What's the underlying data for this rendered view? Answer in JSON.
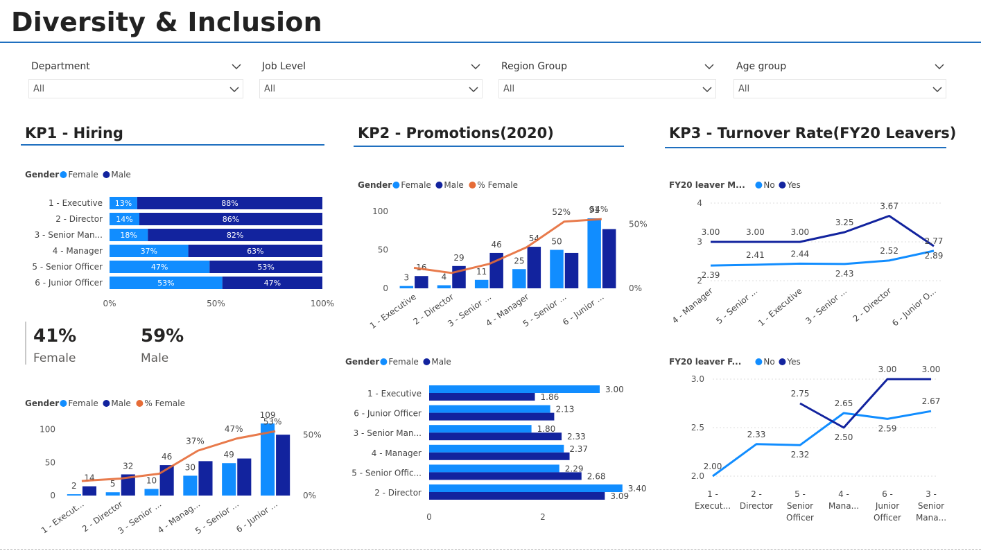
{
  "page": {
    "title": "Diversity & Inclusion"
  },
  "filters": [
    {
      "label": "Department",
      "value": "All"
    },
    {
      "label": "Job Level",
      "value": "All"
    },
    {
      "label": "Region Group",
      "value": "All"
    },
    {
      "label": "Age group",
      "value": "All"
    }
  ],
  "sections": {
    "kp1": "KP1 - Hiring",
    "kp2": "KP2 - Promotions(2020)",
    "kp3": "KP3 - Turnover Rate(FY20 Leavers)"
  },
  "cards": {
    "female_value": "41%",
    "female_label": "Female",
    "male_value": "59%",
    "male_label": "Male"
  },
  "colors": {
    "female": "#118DFF",
    "male": "#12239E",
    "pct_female": "#E66C37",
    "no": "#118DFF",
    "yes": "#12239E"
  },
  "chart_data": [
    {
      "id": "hiring_gender_split",
      "type": "bar",
      "orientation": "horizontal",
      "stacking": "100%",
      "legend_title": "Gender",
      "categories": [
        "1 - Executive",
        "2 - Director",
        "3 - Senior Man...",
        "4 - Manager",
        "5 - Senior Officer",
        "6 - Junior Officer"
      ],
      "series": [
        {
          "name": "Female",
          "values": [
            13,
            14,
            18,
            37,
            47,
            53
          ],
          "labels": [
            "13%",
            "14%",
            "18%",
            "37%",
            "47%",
            "53%"
          ]
        },
        {
          "name": "Male",
          "values": [
            88,
            86,
            82,
            63,
            53,
            47
          ],
          "labels": [
            "88%",
            "86%",
            "82%",
            "63%",
            "53%",
            "47%"
          ]
        }
      ],
      "x_ticks": [
        "0%",
        "50%",
        "100%"
      ],
      "xlim": [
        0,
        100
      ]
    },
    {
      "id": "hiring_counts",
      "type": "bar",
      "legend_title": "Gender",
      "categories": [
        "1 - Execut...",
        "2 - Director",
        "3 - Senior ...",
        "4 - Manag...",
        "5 - Senior ...",
        "6 - Junior ..."
      ],
      "series": [
        {
          "name": "Female",
          "values": [
            2,
            5,
            10,
            30,
            49,
            109
          ]
        },
        {
          "name": "Male",
          "values": [
            14,
            32,
            46,
            52,
            56,
            92
          ]
        },
        {
          "name": "% Female",
          "type": "line",
          "values": [
            12,
            14,
            18,
            37,
            47,
            53
          ]
        }
      ],
      "labels_above": [
        "2",
        "14",
        "5",
        "32",
        "10",
        "46",
        "30",
        "",
        "49",
        "",
        "109",
        ""
      ],
      "pct_labels": [
        "37%",
        "47%",
        "53%"
      ],
      "y_ticks": [
        "0",
        "50",
        "100"
      ],
      "y2_ticks": [
        "0%",
        "50%"
      ],
      "ylim": [
        0,
        110
      ]
    },
    {
      "id": "promotions_counts",
      "type": "bar",
      "legend_title": "Gender",
      "categories": [
        "1 - Executive",
        "2 - Director",
        "3 - Senior ...",
        "4 - Manager",
        "5 - Senior ...",
        "6 - Junior ..."
      ],
      "series": [
        {
          "name": "Female",
          "values": [
            3,
            4,
            11,
            25,
            50,
            91
          ]
        },
        {
          "name": "Male",
          "values": [
            16,
            29,
            46,
            54,
            46,
            77
          ]
        },
        {
          "name": "% Female",
          "type": "line",
          "values": [
            16,
            12,
            19,
            32,
            52,
            54
          ]
        }
      ],
      "labels_above": [
        "3",
        "16",
        "4",
        "29",
        "11",
        "46",
        "25",
        "54",
        "50",
        "",
        "91",
        ""
      ],
      "pct_labels": [
        "52%",
        "54%"
      ],
      "y_ticks": [
        "0",
        "50",
        "100"
      ],
      "y2_ticks": [
        "0%",
        "50%"
      ],
      "ylim": [
        0,
        100
      ]
    },
    {
      "id": "promotions_rating",
      "type": "bar",
      "orientation": "horizontal",
      "legend_title": "Gender",
      "categories": [
        "1 - Executive",
        "6 - Junior Officer",
        "3 - Senior Man...",
        "4 - Manager",
        "5 - Senior Offic...",
        "2 - Director"
      ],
      "series": [
        {
          "name": "Female",
          "values": [
            3.0,
            2.13,
            1.8,
            2.37,
            2.29,
            3.4
          ]
        },
        {
          "name": "Male",
          "values": [
            1.86,
            2.2,
            2.33,
            2.47,
            2.68,
            3.09
          ]
        }
      ],
      "value_labels": [
        "3.00",
        "1.86",
        "2.13",
        "1.80",
        "2.33",
        "2.37",
        "2.29",
        "2.68",
        "3.40",
        "3.09"
      ],
      "x_ticks": [
        "0",
        "2"
      ],
      "xlim": [
        0,
        3.6
      ]
    },
    {
      "id": "turnover_m",
      "type": "line",
      "legend_title": "FY20 leaver M...",
      "categories": [
        "4 - Manager",
        "5 - Senior ...",
        "1 - Executive",
        "3 - Senior ...",
        "2 - Director",
        "6 - Junior O..."
      ],
      "series": [
        {
          "name": "No",
          "values": [
            2.39,
            2.41,
            2.44,
            2.43,
            2.52,
            2.77
          ]
        },
        {
          "name": "Yes",
          "values": [
            3.0,
            3.0,
            3.0,
            3.25,
            3.67,
            2.89
          ]
        }
      ],
      "no_labels": [
        "2.39",
        "2.41",
        "2.44",
        "2.43",
        "2.52",
        "2.77"
      ],
      "yes_labels": [
        "3.00",
        "3.00",
        "3.00",
        "3.25",
        "3.67",
        "2.89"
      ],
      "y_ticks": [
        "2",
        "3",
        "4"
      ],
      "ylim": [
        2,
        4
      ]
    },
    {
      "id": "turnover_f",
      "type": "line",
      "legend_title": "FY20 leaver F...",
      "categories": [
        "1 - Execut...",
        "2 - Director",
        "5 - Senior Officer",
        "4 - Mana...",
        "6 - Junior Officer",
        "3 - Senior Mana..."
      ],
      "series": [
        {
          "name": "No",
          "values": [
            2.0,
            2.33,
            2.32,
            2.65,
            2.59,
            2.67
          ]
        },
        {
          "name": "Yes",
          "values": [
            null,
            null,
            2.75,
            2.5,
            3.0,
            3.0
          ]
        }
      ],
      "no_labels": [
        "2.00",
        "2.33",
        "2.32",
        "2.65",
        "2.59",
        "2.67"
      ],
      "yes_labels": [
        "",
        "",
        "2.75",
        "2.50",
        "3.00",
        "3.00"
      ],
      "y_ticks": [
        "2.0",
        "2.5",
        "3.0"
      ],
      "ylim": [
        2,
        3
      ]
    }
  ]
}
